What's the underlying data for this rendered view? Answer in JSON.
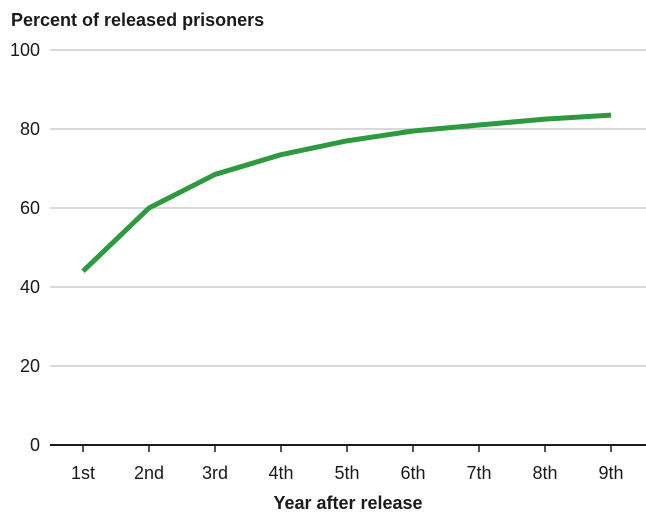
{
  "chart_data": {
    "type": "line",
    "ylabel": "Percent of released prisoners",
    "xlabel": "Year after release",
    "categories": [
      "1st",
      "2nd",
      "3rd",
      "4th",
      "5th",
      "6th",
      "7th",
      "8th",
      "9th"
    ],
    "yticks": [
      0,
      20,
      40,
      60,
      80,
      100
    ],
    "ylim": [
      0,
      100
    ],
    "grid": true,
    "series": [
      {
        "color": "#2e9a3f",
        "values": [
          44,
          60,
          68.5,
          73.5,
          77,
          79.5,
          81,
          82.5,
          83.5
        ]
      }
    ]
  }
}
